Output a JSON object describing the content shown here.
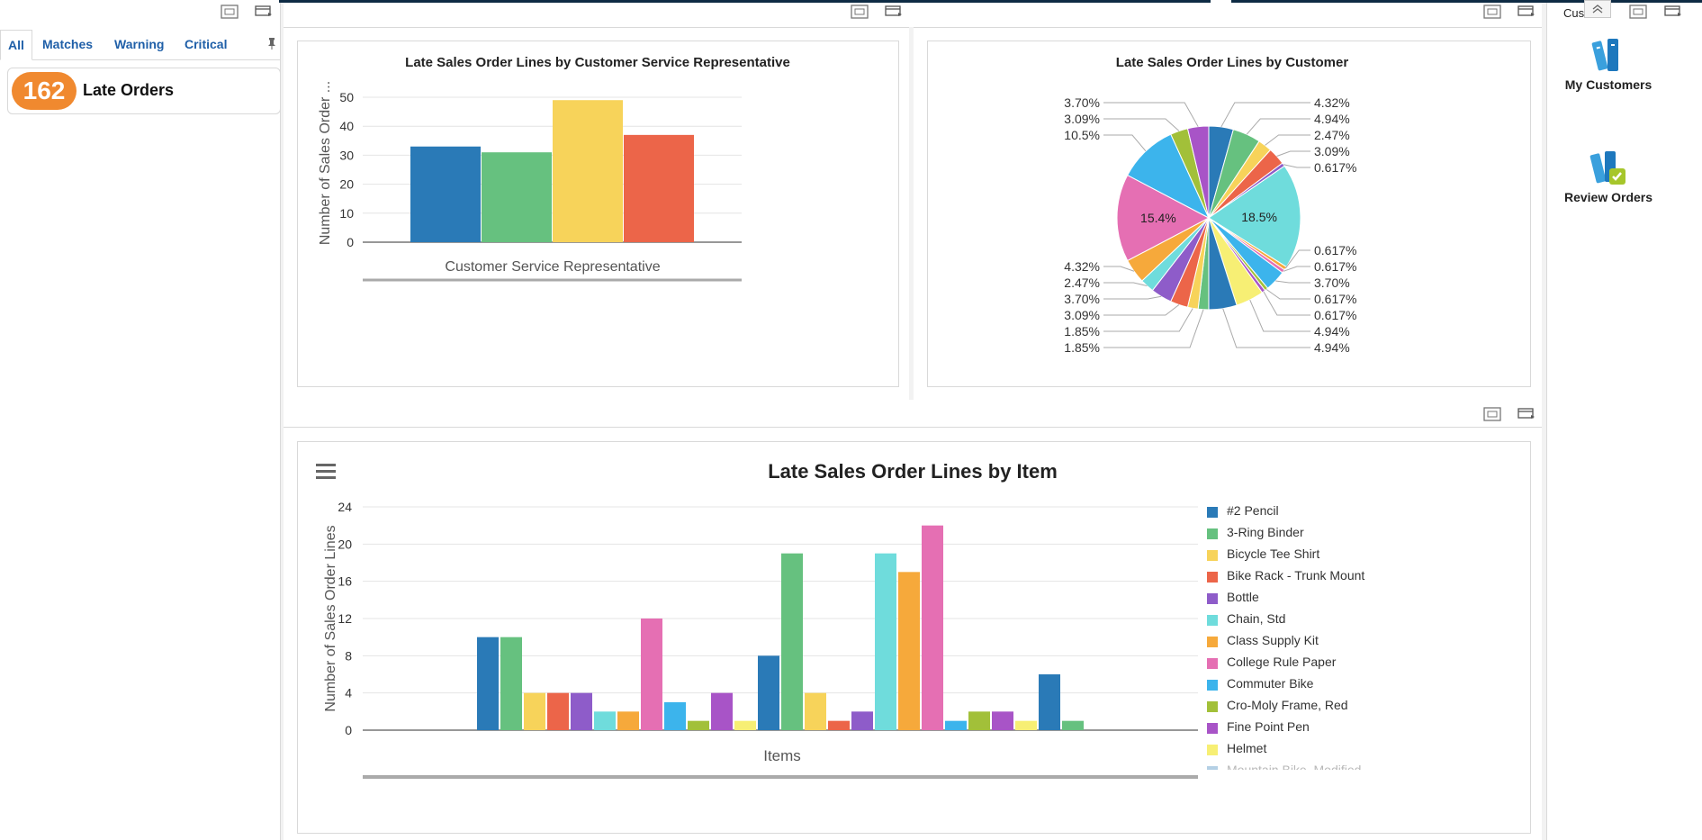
{
  "left_panel": {
    "tabs": [
      {
        "label": "All",
        "active": true
      },
      {
        "label": "Matches"
      },
      {
        "label": "Warning"
      },
      {
        "label": "Critical"
      }
    ],
    "late_count": "162",
    "late_label": "Late Orders"
  },
  "right_panel": {
    "tab_label": "Custo...",
    "launchers": [
      {
        "label": "My Customers",
        "icon": "books-icon"
      },
      {
        "label": "Review Orders",
        "icon": "books-check-icon"
      }
    ]
  },
  "colors": {
    "badge": "#f0892f",
    "tab_link": "#1f5fa8"
  },
  "chart_data": [
    {
      "type": "bar",
      "title": "Late Sales Order Lines by Customer Service Representative",
      "xlabel": "Customer Service Representative",
      "ylabel": "Number of Sales Order ...",
      "ylim": [
        0,
        50
      ],
      "yticks": [
        0,
        10,
        20,
        30,
        40,
        50
      ],
      "grid": true,
      "categories": [
        "",
        "",
        "",
        ""
      ],
      "values": [
        33,
        31,
        49,
        37
      ],
      "colors": [
        "#2a7ab7",
        "#66c17f",
        "#f7d35a",
        "#ec6549"
      ]
    },
    {
      "type": "pie",
      "title": "Late Sales Order Lines by Customer",
      "slices": [
        {
          "label": "4.32%",
          "value": 4.32,
          "color": "#2a7ab7"
        },
        {
          "label": "4.94%",
          "value": 4.94,
          "color": "#66c17f"
        },
        {
          "label": "2.47%",
          "value": 2.47,
          "color": "#f7d35a"
        },
        {
          "label": "3.09%",
          "value": 3.09,
          "color": "#ec6549"
        },
        {
          "label": "0.617%",
          "value": 0.617,
          "color": "#8e5cc9"
        },
        {
          "label": "18.5%",
          "value": 18.5,
          "color": "#6fdcdc"
        },
        {
          "label": "0.617%",
          "value": 0.617,
          "color": "#f6a93b"
        },
        {
          "label": "0.617%",
          "value": 0.617,
          "color": "#e56fb3"
        },
        {
          "label": "3.70%",
          "value": 3.7,
          "color": "#3cb4ec"
        },
        {
          "label": "0.617%",
          "value": 0.617,
          "color": "#a2c039"
        },
        {
          "label": "0.617%",
          "value": 0.617,
          "color": "#a854c7"
        },
        {
          "label": "4.94%",
          "value": 4.94,
          "color": "#f7ef74"
        },
        {
          "label": "4.94%",
          "value": 4.94,
          "color": "#2a7ab7"
        },
        {
          "label": "1.85%",
          "value": 1.85,
          "color": "#66c17f"
        },
        {
          "label": "1.85%",
          "value": 1.85,
          "color": "#f7d35a"
        },
        {
          "label": "3.09%",
          "value": 3.09,
          "color": "#ec6549"
        },
        {
          "label": "3.70%",
          "value": 3.7,
          "color": "#8e5cc9"
        },
        {
          "label": "2.47%",
          "value": 2.47,
          "color": "#6fdcdc"
        },
        {
          "label": "4.32%",
          "value": 4.32,
          "color": "#f6a93b"
        },
        {
          "label": "15.4%",
          "value": 15.4,
          "color": "#e56fb3"
        },
        {
          "label": "10.5%",
          "value": 10.5,
          "color": "#3cb4ec"
        },
        {
          "label": "3.09%",
          "value": 3.09,
          "color": "#a2c039"
        },
        {
          "label": "3.70%",
          "value": 3.7,
          "color": "#a854c7"
        }
      ]
    },
    {
      "type": "bar",
      "title": "Late Sales Order Lines by Item",
      "xlabel": "Items",
      "ylabel": "Number of Sales Order Lines",
      "ylim": [
        0,
        24
      ],
      "yticks": [
        0,
        4,
        8,
        12,
        16,
        20,
        24
      ],
      "grid": true,
      "legend_position": "right",
      "series": [
        {
          "name": "#2 Pencil",
          "values": [
            10
          ],
          "color": "#2a7ab7"
        },
        {
          "name": "3-Ring Binder",
          "values": [
            10
          ],
          "color": "#66c17f"
        },
        {
          "name": "Bicycle Tee Shirt",
          "values": [
            4
          ],
          "color": "#f7d35a"
        },
        {
          "name": "Bike Rack - Trunk Mount",
          "values": [
            4
          ],
          "color": "#ec6549"
        },
        {
          "name": "Bottle",
          "values": [
            4
          ],
          "color": "#8e5cc9"
        },
        {
          "name": "Chain, Std",
          "values": [
            2
          ],
          "color": "#6fdcdc"
        },
        {
          "name": "Class Supply Kit",
          "values": [
            2
          ],
          "color": "#f6a93b"
        },
        {
          "name": "College Rule Paper",
          "values": [
            12
          ],
          "color": "#e56fb3"
        },
        {
          "name": "Commuter Bike",
          "values": [
            3
          ],
          "color": "#3cb4ec"
        },
        {
          "name": "Cro-Moly Frame, Red",
          "values": [
            1
          ],
          "color": "#a2c039"
        },
        {
          "name": "Fine Point Pen",
          "values": [
            4
          ],
          "color": "#a854c7"
        },
        {
          "name": "Helmet",
          "values": [
            1
          ],
          "color": "#f7ef74"
        },
        {
          "name": "Mountain Bike, Modified",
          "values": [
            8
          ],
          "color": "#2a7ab7"
        },
        {
          "name": "",
          "values": [
            19
          ],
          "color": "#66c17f"
        },
        {
          "name": "",
          "values": [
            4
          ],
          "color": "#f7d35a"
        },
        {
          "name": "",
          "values": [
            1
          ],
          "color": "#ec6549"
        },
        {
          "name": "",
          "values": [
            2
          ],
          "color": "#8e5cc9"
        },
        {
          "name": "",
          "values": [
            19
          ],
          "color": "#6fdcdc"
        },
        {
          "name": "",
          "values": [
            17
          ],
          "color": "#f6a93b"
        },
        {
          "name": "",
          "values": [
            22
          ],
          "color": "#e56fb3"
        },
        {
          "name": "",
          "values": [
            1
          ],
          "color": "#3cb4ec"
        },
        {
          "name": "",
          "values": [
            2
          ],
          "color": "#a2c039"
        },
        {
          "name": "",
          "values": [
            2
          ],
          "color": "#a854c7"
        },
        {
          "name": "",
          "values": [
            1
          ],
          "color": "#f7ef74"
        },
        {
          "name": "",
          "values": [
            6
          ],
          "color": "#2a7ab7"
        },
        {
          "name": "",
          "values": [
            1
          ],
          "color": "#66c17f"
        }
      ]
    }
  ]
}
